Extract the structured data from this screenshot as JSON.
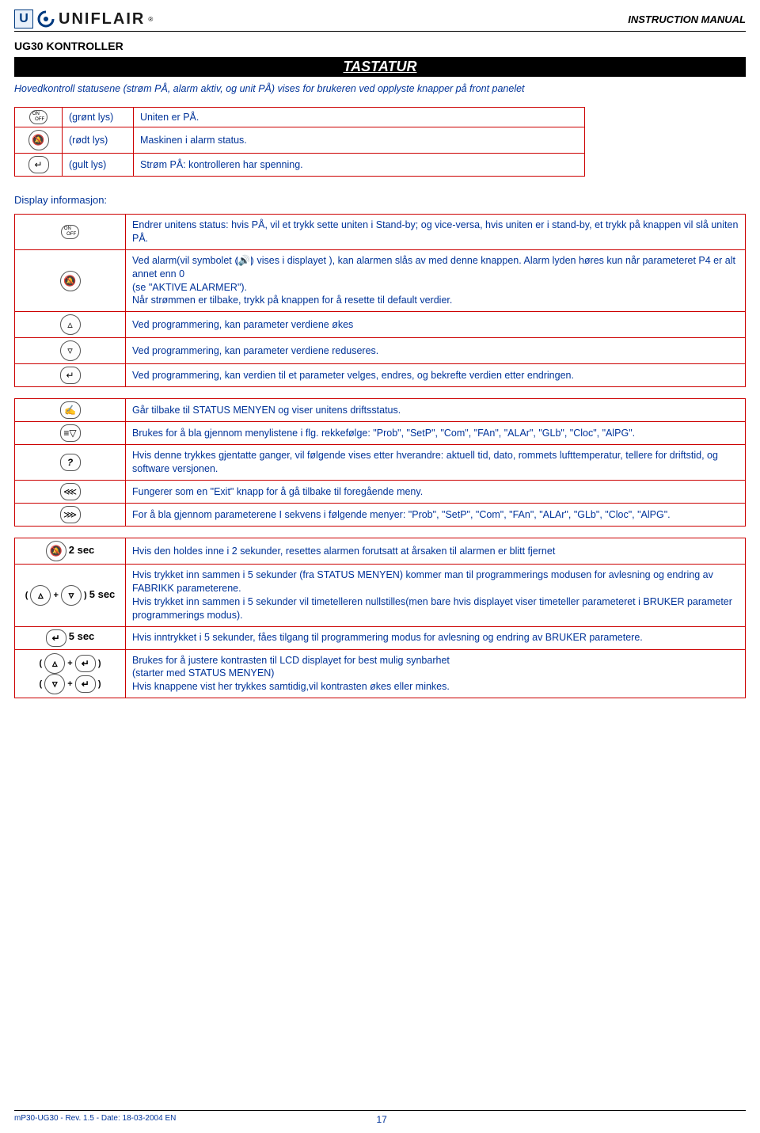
{
  "header": {
    "brand": "UNIFLAIR",
    "reg": "®",
    "manual": "INSTRUCTION MANUAL",
    "subtitle": "UG30 KONTROLLER",
    "barTitle": "TASTATUR"
  },
  "intro": "Hovedkontroll statusene (strøm PÅ, alarm aktiv, og unit PÅ) vises for brukeren ved opplyste knapper på front panelet",
  "statusRows": [
    {
      "label": "(grønt lys)",
      "desc": "Uniten er PÅ.",
      "icon": "onoff"
    },
    {
      "label": "(rødt lys)",
      "desc": "Maskinen i alarm status.",
      "icon": "alarm"
    },
    {
      "label": "(gult lys)",
      "desc": "Strøm PÅ: kontrolleren har spenning.",
      "icon": "enter"
    }
  ],
  "displayHeading": "Display informasjon:",
  "infoRows1": [
    {
      "icon": "onoff",
      "desc": "Endrer unitens status: hvis PÅ, vil et trykk sette uniten i Stand-by; og vice-versa, hvis uniten er i stand-by, et trykk på knappen vil slå uniten PÅ."
    },
    {
      "icon": "alarm",
      "desc": "Ved alarm(vil symbolet ⟬🔊⟭ vises i displayet ), kan alarmen slås av med denne knappen. Alarm lyden høres kun når parameteret P4 er alt annet enn 0\n(se \"AKTIVE ALARMER\").\nNår strømmen er tilbake, trykk på knappen for å resette til default verdier."
    },
    {
      "icon": "up",
      "desc": "Ved programmering, kan parameter verdiene økes"
    },
    {
      "icon": "down",
      "desc": "Ved programmering, kan parameter verdiene reduseres."
    },
    {
      "icon": "enter",
      "desc": "Ved programmering, kan verdien til et parameter velges, endres, og bekrefte verdien etter endringen."
    }
  ],
  "infoRows2": [
    {
      "icon": "hand",
      "desc": "Går tilbake til STATUS MENYEN og viser unitens driftsstatus."
    },
    {
      "icon": "stackdown",
      "desc": "Brukes for å bla gjennom menylistene i flg. rekkefølge: \"Prob\", \"SetP\", \"Com\", \"FAn\", \"ALAr\", \"GLb\", \"Cloc\", \"AlPG\"."
    },
    {
      "icon": "question",
      "desc": "Hvis denne trykkes gjentatte ganger, vil følgende vises etter hverandre: aktuell tid, dato, rommets lufttemperatur, tellere for driftstid, og software versjonen."
    },
    {
      "icon": "tripleleft",
      "desc": "Fungerer som en \"Exit\" knapp for å gå tilbake til foregående meny."
    },
    {
      "icon": "tripleright",
      "desc": "For å bla gjennom parameterene I sekvens i følgende menyer: \"Prob\", \"SetP\", \"Com\", \"FAn\", \"ALAr\", \"GLb\", \"Cloc\", \"AlPG\"."
    }
  ],
  "infoRows3": [
    {
      "iconHtml": "alarm2sec",
      "desc": "Hvis den holdes inne i 2 sekunder, resettes alarmen forutsatt at årsaken til alarmen er blitt fjernet"
    },
    {
      "iconHtml": "updown5sec",
      "desc": "Hvis trykket inn sammen i 5 sekunder (fra STATUS MENYEN) kommer man til programmerings modusen for avlesning og endring av FABRIKK parameterene.\nHvis trykket inn sammen i 5 sekunder vil timetelleren nullstilles(men bare hvis displayet viser timeteller parameteret i BRUKER parameter programmerings modus)."
    },
    {
      "iconHtml": "enter5sec",
      "desc": "Hvis inntrykket i 5 sekunder, fåes tilgang til programmering modus for avlesning og endring av BRUKER parametere."
    },
    {
      "iconHtml": "upenter_downenter",
      "desc": "Brukes for å justere kontrasten til LCD displayet for best mulig synbarhet\n(starter med STATUS MENYEN)\nHvis knappene vist her trykkes samtidig,vil kontrasten økes eller minkes."
    }
  ],
  "footer": {
    "rev": "mP30-UG30 - Rev. 1.5 - Date: 18-03-2004 EN",
    "page": "17"
  },
  "colors": {
    "tableBorder": "#cc0000",
    "textBlue": "#003399",
    "headerRule": "#000000"
  }
}
